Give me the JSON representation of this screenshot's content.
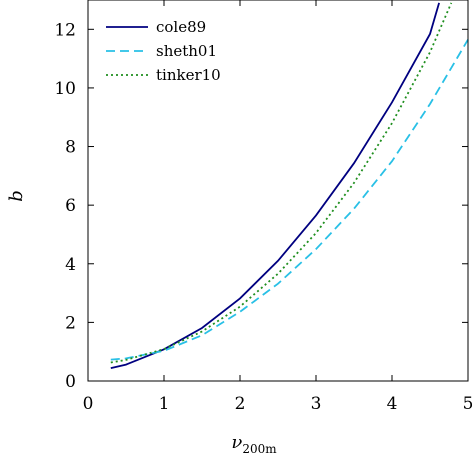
{
  "chart_data": {
    "type": "line",
    "xlabel": "ν",
    "xlabel_sub": "200m",
    "ylabel": "b",
    "xlim": [
      0,
      5
    ],
    "ylim": [
      0,
      13
    ],
    "x_ticks": [
      0,
      1,
      2,
      3,
      4,
      5
    ],
    "y_ticks": [
      0,
      2,
      4,
      6,
      8,
      10,
      12
    ],
    "grid": false,
    "legend_position": "top-left",
    "series": [
      {
        "name": "cole89",
        "color": "#000080",
        "dash": "solid",
        "x": [
          0.3,
          0.5,
          1.0,
          1.5,
          2.0,
          2.5,
          3.0,
          3.5,
          4.0,
          4.5,
          4.62
        ],
        "y": [
          0.44,
          0.56,
          1.08,
          1.81,
          2.82,
          4.1,
          5.65,
          7.43,
          9.51,
          11.84,
          12.9
        ]
      },
      {
        "name": "sheth01",
        "color": "#29c0e6",
        "dash": "dashed",
        "x": [
          0.3,
          0.5,
          1.0,
          1.5,
          2.0,
          2.5,
          3.0,
          3.5,
          4.0,
          4.5,
          5.0
        ],
        "y": [
          0.73,
          0.77,
          1.03,
          1.56,
          2.36,
          3.32,
          4.5,
          5.88,
          7.5,
          9.45,
          11.65
        ]
      },
      {
        "name": "tinker10",
        "color": "#1f8f1f",
        "dash": "dotted",
        "x": [
          0.3,
          0.5,
          1.0,
          1.5,
          2.0,
          2.5,
          3.0,
          3.5,
          4.0,
          4.5,
          4.78
        ],
        "y": [
          0.63,
          0.72,
          1.09,
          1.69,
          2.54,
          3.66,
          5.05,
          6.76,
          8.8,
          11.22,
          12.9
        ]
      }
    ]
  }
}
